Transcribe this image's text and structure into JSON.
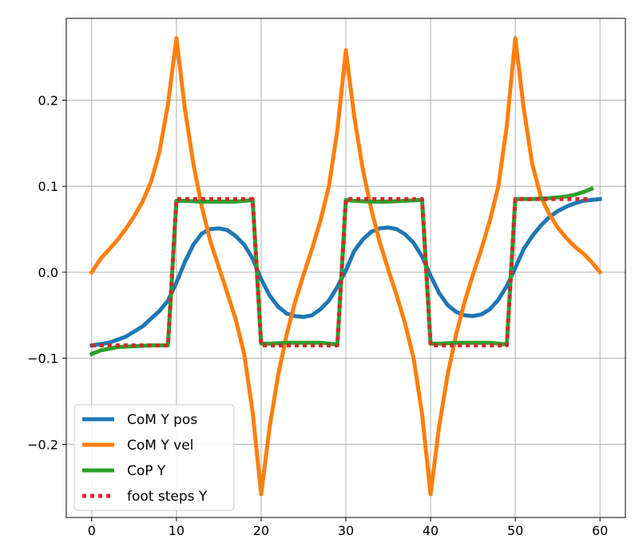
{
  "chart_data": {
    "type": "line",
    "title": "",
    "xlabel": "",
    "ylabel": "",
    "xlim": [
      -3,
      63
    ],
    "ylim": [
      -0.285,
      0.295
    ],
    "grid": true,
    "legend_position": "lower-left",
    "xticks": [
      0,
      10,
      20,
      30,
      40,
      50,
      60
    ],
    "xtick_labels": [
      "0",
      "10",
      "20",
      "30",
      "40",
      "50",
      "60"
    ],
    "yticks": [
      -0.2,
      -0.1,
      0.0,
      0.1,
      0.2
    ],
    "ytick_labels": [
      "−0.2",
      "−0.1",
      "0.0",
      "0.1",
      "0.2"
    ],
    "series": [
      {
        "name": "CoM Y pos",
        "color": "#1f77b4",
        "style": "solid",
        "points": [
          [
            0,
            -0.085
          ],
          [
            2,
            -0.082
          ],
          [
            4,
            -0.075
          ],
          [
            6,
            -0.063
          ],
          [
            8,
            -0.045
          ],
          [
            9,
            -0.033
          ],
          [
            10,
            -0.012
          ],
          [
            11,
            0.012
          ],
          [
            12,
            0.032
          ],
          [
            13,
            0.045
          ],
          [
            14,
            0.05
          ],
          [
            15,
            0.051
          ],
          [
            16,
            0.049
          ],
          [
            17,
            0.042
          ],
          [
            18,
            0.032
          ],
          [
            19,
            0.016
          ],
          [
            20,
            -0.008
          ],
          [
            21,
            -0.027
          ],
          [
            22,
            -0.04
          ],
          [
            23,
            -0.048
          ],
          [
            24,
            -0.051
          ],
          [
            25,
            -0.052
          ],
          [
            26,
            -0.05
          ],
          [
            27,
            -0.043
          ],
          [
            28,
            -0.033
          ],
          [
            29,
            -0.017
          ],
          [
            30,
            0.002
          ],
          [
            31,
            0.025
          ],
          [
            32,
            0.038
          ],
          [
            33,
            0.047
          ],
          [
            34,
            0.051
          ],
          [
            35,
            0.052
          ],
          [
            36,
            0.05
          ],
          [
            37,
            0.044
          ],
          [
            38,
            0.034
          ],
          [
            39,
            0.018
          ],
          [
            40,
            -0.004
          ],
          [
            41,
            -0.024
          ],
          [
            42,
            -0.038
          ],
          [
            43,
            -0.046
          ],
          [
            44,
            -0.05
          ],
          [
            45,
            -0.051
          ],
          [
            46,
            -0.049
          ],
          [
            47,
            -0.043
          ],
          [
            48,
            -0.032
          ],
          [
            49,
            -0.016
          ],
          [
            50,
            0.005
          ],
          [
            51,
            0.027
          ],
          [
            52,
            0.042
          ],
          [
            53,
            0.054
          ],
          [
            54,
            0.064
          ],
          [
            55,
            0.071
          ],
          [
            56,
            0.076
          ],
          [
            57,
            0.08
          ],
          [
            58,
            0.083
          ],
          [
            59,
            0.084
          ],
          [
            60,
            0.085
          ]
        ]
      },
      {
        "name": "CoM Y vel",
        "color": "#ff7f0e",
        "style": "solid",
        "points": [
          [
            0,
            0.0
          ],
          [
            1,
            0.015
          ],
          [
            2,
            0.026
          ],
          [
            3,
            0.037
          ],
          [
            4,
            0.05
          ],
          [
            5,
            0.065
          ],
          [
            6,
            0.082
          ],
          [
            7,
            0.105
          ],
          [
            8,
            0.14
          ],
          [
            9,
            0.195
          ],
          [
            10,
            0.272
          ],
          [
            11,
            0.19
          ],
          [
            12,
            0.126
          ],
          [
            13,
            0.076
          ],
          [
            14,
            0.036
          ],
          [
            15,
            0.006
          ],
          [
            16,
            -0.024
          ],
          [
            17,
            -0.055
          ],
          [
            18,
            -0.095
          ],
          [
            19,
            -0.163
          ],
          [
            20,
            -0.258
          ],
          [
            21,
            -0.18
          ],
          [
            22,
            -0.12
          ],
          [
            23,
            -0.073
          ],
          [
            24,
            -0.035
          ],
          [
            25,
            -0.003
          ],
          [
            26,
            0.027
          ],
          [
            27,
            0.06
          ],
          [
            28,
            0.1
          ],
          [
            29,
            0.165
          ],
          [
            30,
            0.258
          ],
          [
            31,
            0.18
          ],
          [
            32,
            0.12
          ],
          [
            33,
            0.073
          ],
          [
            34,
            0.035
          ],
          [
            35,
            0.003
          ],
          [
            36,
            -0.027
          ],
          [
            37,
            -0.06
          ],
          [
            38,
            -0.1
          ],
          [
            39,
            -0.165
          ],
          [
            40,
            -0.258
          ],
          [
            41,
            -0.18
          ],
          [
            42,
            -0.12
          ],
          [
            43,
            -0.073
          ],
          [
            44,
            -0.035
          ],
          [
            45,
            -0.003
          ],
          [
            46,
            0.027
          ],
          [
            47,
            0.06
          ],
          [
            48,
            0.1
          ],
          [
            49,
            0.17
          ],
          [
            50,
            0.272
          ],
          [
            51,
            0.19
          ],
          [
            52,
            0.126
          ],
          [
            53,
            0.088
          ],
          [
            54,
            0.068
          ],
          [
            55,
            0.052
          ],
          [
            56,
            0.04
          ],
          [
            57,
            0.03
          ],
          [
            58,
            0.022
          ],
          [
            59,
            0.012
          ],
          [
            60,
            0.0
          ]
        ]
      },
      {
        "name": "CoP Y",
        "color": "#2ca02c",
        "style": "solid",
        "points": [
          [
            0,
            -0.095
          ],
          [
            1,
            -0.091
          ],
          [
            2,
            -0.089
          ],
          [
            3,
            -0.087
          ],
          [
            5,
            -0.086
          ],
          [
            7,
            -0.085
          ],
          [
            9,
            -0.085
          ],
          [
            10,
            0.083
          ],
          [
            11,
            0.083
          ],
          [
            13,
            0.082
          ],
          [
            15,
            0.082
          ],
          [
            17,
            0.082
          ],
          [
            19,
            0.084
          ],
          [
            20,
            -0.083
          ],
          [
            21,
            -0.083
          ],
          [
            23,
            -0.082
          ],
          [
            25,
            -0.082
          ],
          [
            27,
            -0.082
          ],
          [
            29,
            -0.084
          ],
          [
            30,
            0.084
          ],
          [
            31,
            0.083
          ],
          [
            33,
            0.082
          ],
          [
            35,
            0.082
          ],
          [
            37,
            0.083
          ],
          [
            39,
            0.084
          ],
          [
            40,
            -0.083
          ],
          [
            41,
            -0.083
          ],
          [
            43,
            -0.082
          ],
          [
            45,
            -0.082
          ],
          [
            47,
            -0.082
          ],
          [
            49,
            -0.084
          ],
          [
            50,
            0.085
          ],
          [
            52,
            0.085
          ],
          [
            54,
            0.086
          ],
          [
            55,
            0.087
          ],
          [
            56,
            0.088
          ],
          [
            57,
            0.09
          ],
          [
            58,
            0.093
          ],
          [
            59,
            0.097
          ]
        ]
      },
      {
        "name": "foot steps Y",
        "color": "#d62728",
        "style": "dotted",
        "points": [
          [
            0,
            -0.085
          ],
          [
            9,
            -0.085
          ],
          [
            10,
            0.085
          ],
          [
            19,
            0.085
          ],
          [
            20,
            -0.085
          ],
          [
            29,
            -0.085
          ],
          [
            30,
            0.085
          ],
          [
            39,
            0.085
          ],
          [
            40,
            -0.085
          ],
          [
            49,
            -0.085
          ],
          [
            50,
            0.085
          ],
          [
            59,
            0.085
          ]
        ]
      }
    ]
  }
}
